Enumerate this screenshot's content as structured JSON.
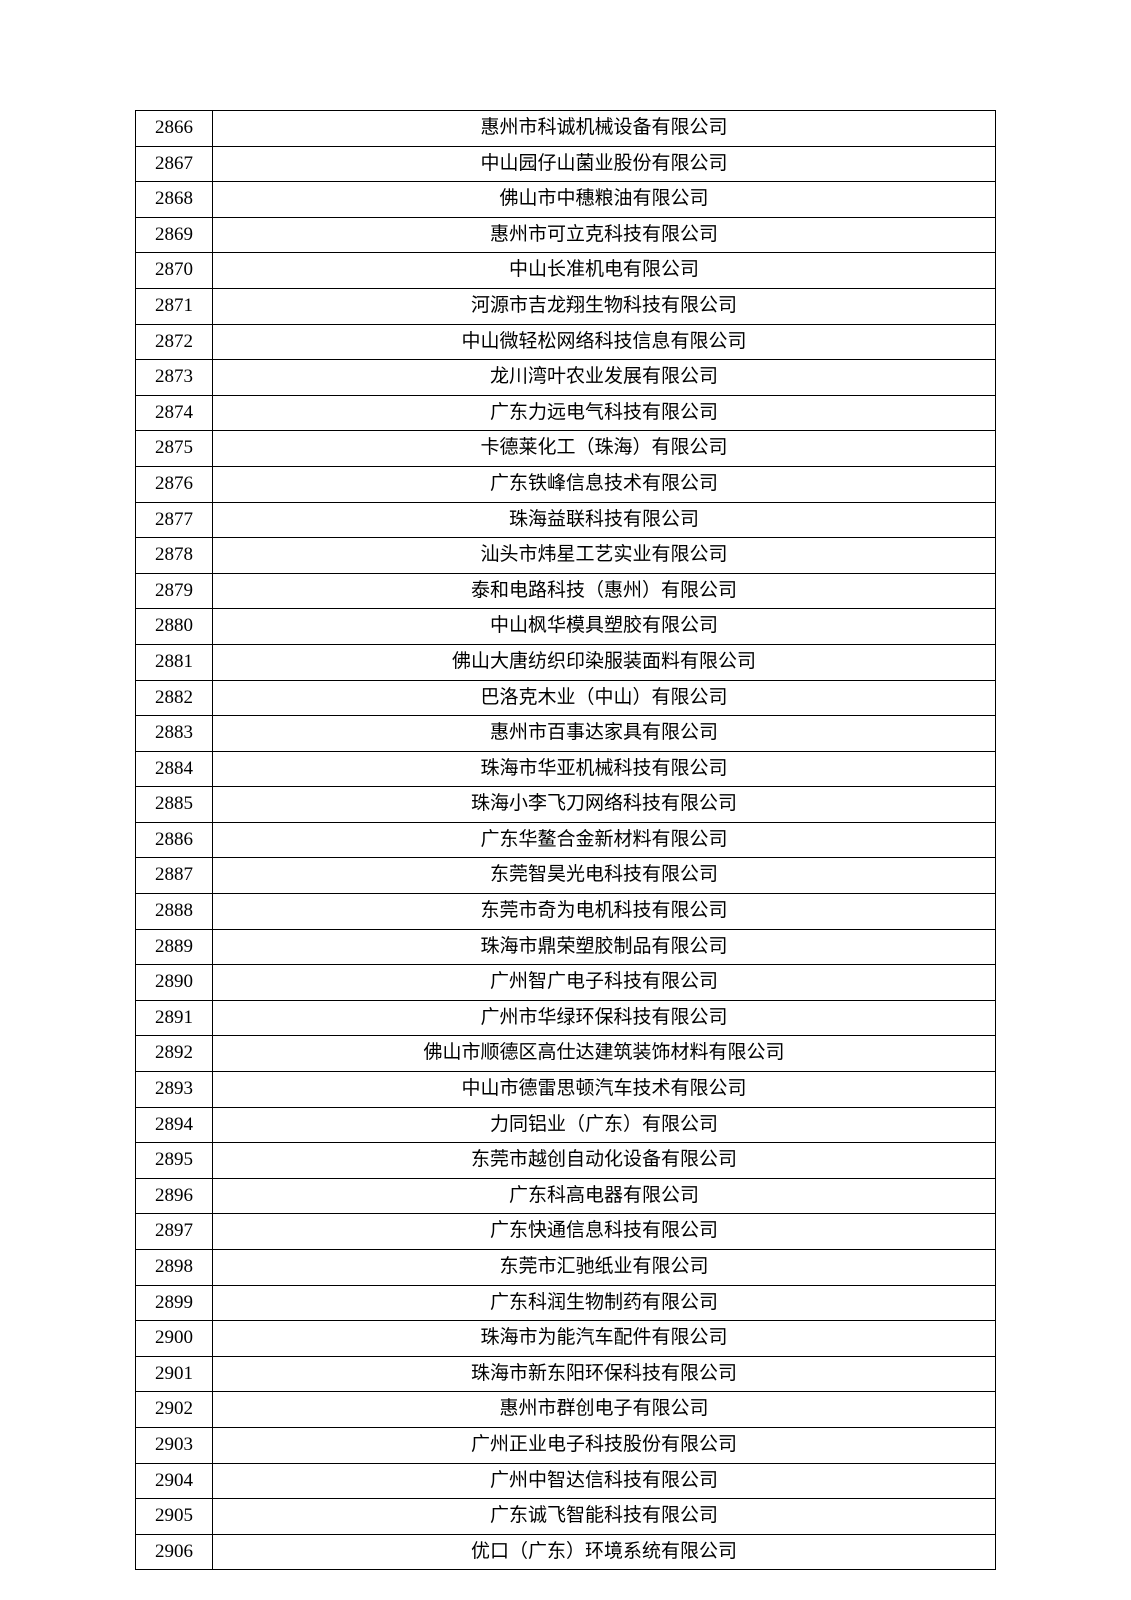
{
  "table": {
    "columns": [
      "index",
      "company_name"
    ],
    "col_widths": {
      "index": 77,
      "name": "auto"
    },
    "border_color": "#000000",
    "text_color": "#000000",
    "font_size": 19,
    "background_color": "#ffffff",
    "rows": [
      {
        "index": "2866",
        "name": "惠州市科诚机械设备有限公司"
      },
      {
        "index": "2867",
        "name": "中山园仔山菌业股份有限公司"
      },
      {
        "index": "2868",
        "name": "佛山市中穗粮油有限公司"
      },
      {
        "index": "2869",
        "name": "惠州市可立克科技有限公司"
      },
      {
        "index": "2870",
        "name": "中山长准机电有限公司"
      },
      {
        "index": "2871",
        "name": "河源市吉龙翔生物科技有限公司"
      },
      {
        "index": "2872",
        "name": "中山微轻松网络科技信息有限公司"
      },
      {
        "index": "2873",
        "name": "龙川湾叶农业发展有限公司"
      },
      {
        "index": "2874",
        "name": "广东力远电气科技有限公司"
      },
      {
        "index": "2875",
        "name": "卡德莱化工（珠海）有限公司"
      },
      {
        "index": "2876",
        "name": "广东铁峰信息技术有限公司"
      },
      {
        "index": "2877",
        "name": "珠海益联科技有限公司"
      },
      {
        "index": "2878",
        "name": "汕头市炜星工艺实业有限公司"
      },
      {
        "index": "2879",
        "name": "泰和电路科技（惠州）有限公司"
      },
      {
        "index": "2880",
        "name": "中山枫华模具塑胶有限公司"
      },
      {
        "index": "2881",
        "name": "佛山大唐纺织印染服装面料有限公司"
      },
      {
        "index": "2882",
        "name": "巴洛克木业（中山）有限公司"
      },
      {
        "index": "2883",
        "name": "惠州市百事达家具有限公司"
      },
      {
        "index": "2884",
        "name": "珠海市华亚机械科技有限公司"
      },
      {
        "index": "2885",
        "name": "珠海小李飞刀网络科技有限公司"
      },
      {
        "index": "2886",
        "name": "广东华鳌合金新材料有限公司"
      },
      {
        "index": "2887",
        "name": "东莞智昊光电科技有限公司"
      },
      {
        "index": "2888",
        "name": "东莞市奇为电机科技有限公司"
      },
      {
        "index": "2889",
        "name": "珠海市鼎荣塑胶制品有限公司"
      },
      {
        "index": "2890",
        "name": "广州智广电子科技有限公司"
      },
      {
        "index": "2891",
        "name": "广州市华绿环保科技有限公司"
      },
      {
        "index": "2892",
        "name": "佛山市顺德区高仕达建筑装饰材料有限公司"
      },
      {
        "index": "2893",
        "name": "中山市德雷思顿汽车技术有限公司"
      },
      {
        "index": "2894",
        "name": "力同铝业（广东）有限公司"
      },
      {
        "index": "2895",
        "name": "东莞市越创自动化设备有限公司"
      },
      {
        "index": "2896",
        "name": "广东科高电器有限公司"
      },
      {
        "index": "2897",
        "name": "广东快通信息科技有限公司"
      },
      {
        "index": "2898",
        "name": "东莞市汇驰纸业有限公司"
      },
      {
        "index": "2899",
        "name": "广东科润生物制药有限公司"
      },
      {
        "index": "2900",
        "name": "珠海市为能汽车配件有限公司"
      },
      {
        "index": "2901",
        "name": "珠海市新东阳环保科技有限公司"
      },
      {
        "index": "2902",
        "name": "惠州市群创电子有限公司"
      },
      {
        "index": "2903",
        "name": "广州正业电子科技股份有限公司"
      },
      {
        "index": "2904",
        "name": "广州中智达信科技有限公司"
      },
      {
        "index": "2905",
        "name": "广东诚飞智能科技有限公司"
      },
      {
        "index": "2906",
        "name": "优口（广东）环境系统有限公司"
      }
    ]
  }
}
